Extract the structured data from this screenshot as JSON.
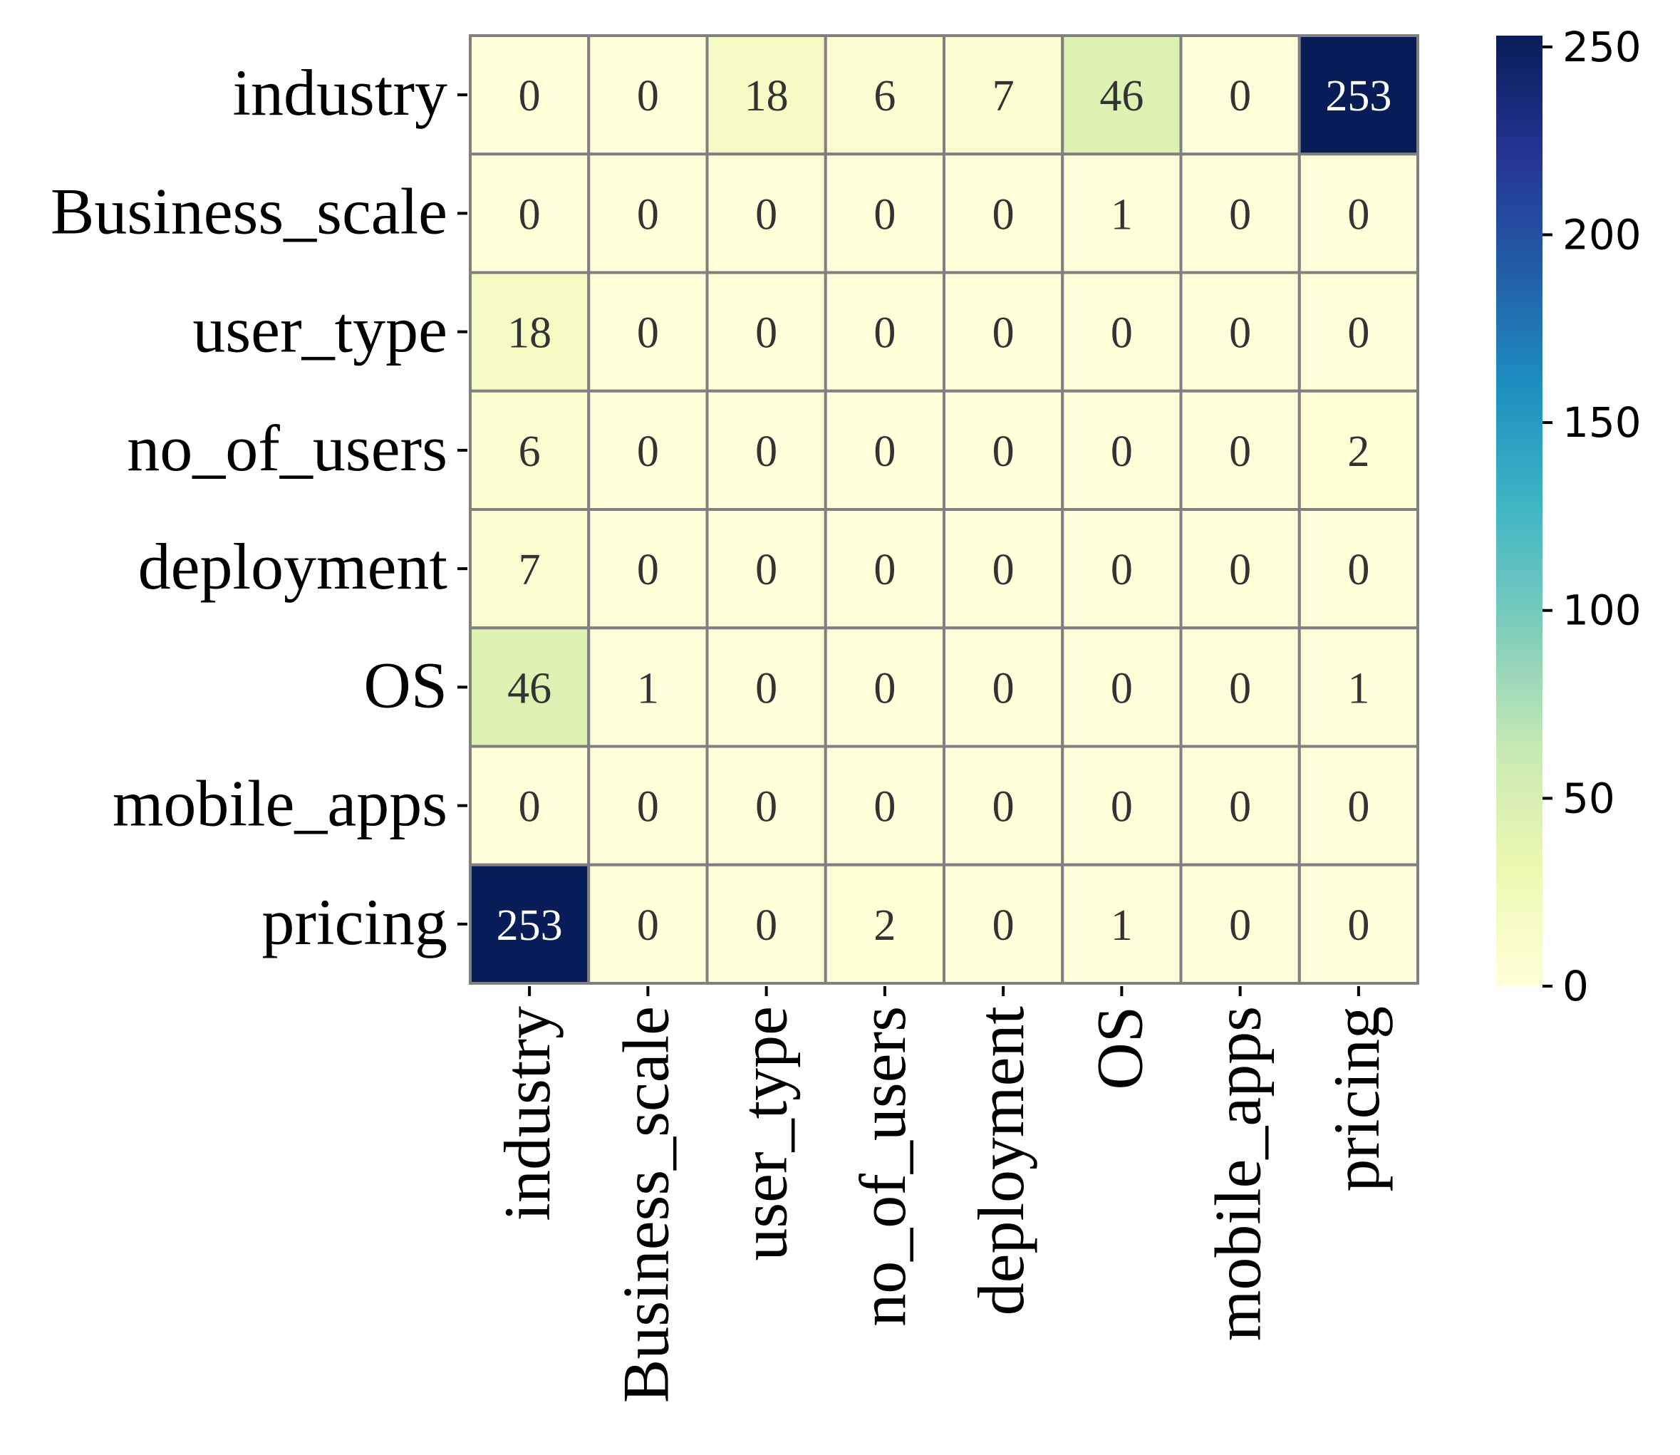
{
  "chart_data": {
    "type": "heatmap",
    "title": "",
    "xlabel": "",
    "ylabel": "",
    "row_labels": [
      "industry",
      "Business_scale",
      "user_type",
      "no_of_users",
      "deployment",
      "OS",
      "mobile_apps",
      "pricing"
    ],
    "col_labels": [
      "industry",
      "Business_scale",
      "user_type",
      "no_of_users",
      "deployment",
      "OS",
      "mobile_apps",
      "pricing"
    ],
    "values": [
      [
        0,
        0,
        18,
        6,
        7,
        46,
        0,
        253
      ],
      [
        0,
        0,
        0,
        0,
        0,
        1,
        0,
        0
      ],
      [
        18,
        0,
        0,
        0,
        0,
        0,
        0,
        0
      ],
      [
        6,
        0,
        0,
        0,
        0,
        0,
        0,
        2
      ],
      [
        7,
        0,
        0,
        0,
        0,
        0,
        0,
        0
      ],
      [
        46,
        1,
        0,
        0,
        0,
        0,
        0,
        1
      ],
      [
        0,
        0,
        0,
        0,
        0,
        0,
        0,
        0
      ],
      [
        253,
        0,
        0,
        2,
        0,
        1,
        0,
        0
      ]
    ],
    "colormap": "YlGnBu",
    "colormap_stops": [
      "#ffffd9",
      "#edf8b1",
      "#c7e9b4",
      "#7fcdbb",
      "#41b6c4",
      "#1d91c0",
      "#225ea8",
      "#253494",
      "#081d58"
    ],
    "cell_border_color": "#808080",
    "text_color_light": "#ffffff",
    "text_color_dark": "#333333",
    "colorbar": {
      "range": [
        0,
        253
      ],
      "ticks": [
        0,
        50,
        100,
        150,
        200,
        250
      ],
      "tick_labels": [
        "0",
        "50",
        "100",
        "150",
        "200",
        "250"
      ],
      "placement": "right"
    }
  }
}
